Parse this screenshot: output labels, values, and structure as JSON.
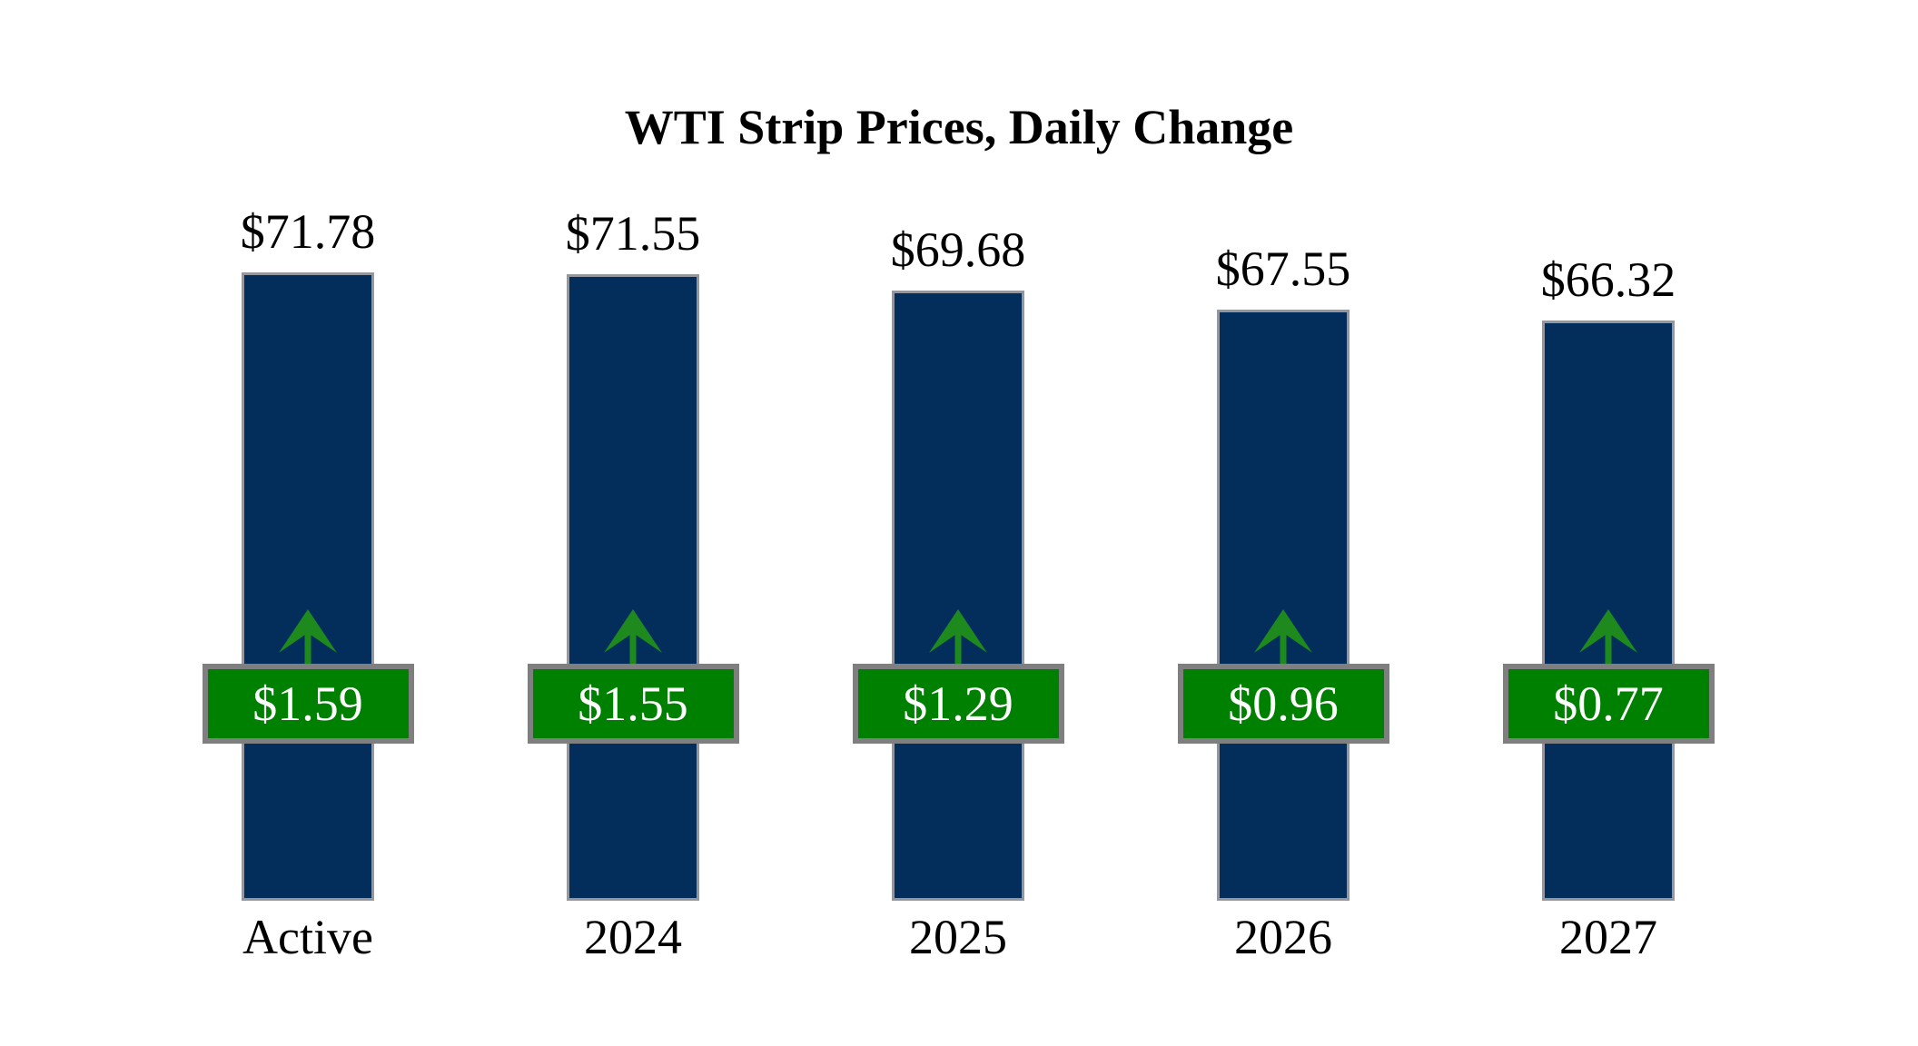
{
  "colors": {
    "background": "#ffffff",
    "bar_fill": "#032e5c",
    "bar_border": "#94989e",
    "change_box_fill": "#008000",
    "change_box_border": "#7f7f7f",
    "arrow_green": "#1e8a1e",
    "label_text": "#000000",
    "change_text": "#ffffff"
  },
  "chart_data": {
    "type": "bar",
    "title": "WTI Strip Prices, Daily Change",
    "categories": [
      "Active",
      "2024",
      "2025",
      "2026",
      "2027"
    ],
    "series": [
      {
        "name": "Strip Price",
        "values": [
          71.78,
          71.55,
          69.68,
          67.55,
          66.32
        ],
        "display_labels": [
          "$71.78",
          "$71.55",
          "$69.68",
          "$67.55",
          "$66.32"
        ]
      },
      {
        "name": "Daily Change",
        "values": [
          1.59,
          1.55,
          1.29,
          0.96,
          0.77
        ],
        "display_labels": [
          "$1.59",
          "$1.55",
          "$1.29",
          "$0.96",
          "$0.77"
        ]
      }
    ],
    "change_direction": "up",
    "xlabel": "",
    "ylabel": "",
    "ylim": [
      0,
      80
    ],
    "grid": false,
    "legend": false,
    "axes_visible": false
  }
}
